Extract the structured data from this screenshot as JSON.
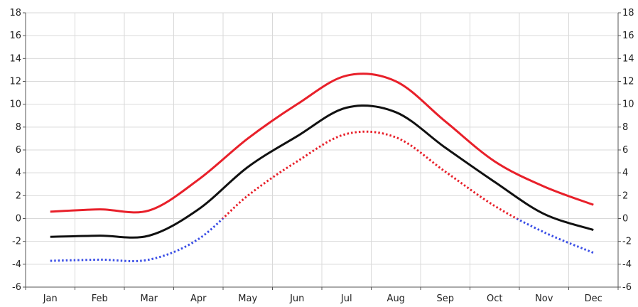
{
  "chart_data": {
    "type": "line",
    "title": "",
    "xlabel": "",
    "ylabel": "",
    "categories": [
      "Jan",
      "Feb",
      "Mar",
      "Apr",
      "May",
      "Jun",
      "Jul",
      "Aug",
      "Sep",
      "Oct",
      "Nov",
      "Dec"
    ],
    "ylim": [
      -6,
      18
    ],
    "yticks": [
      -6,
      -4,
      -2,
      0,
      2,
      4,
      6,
      8,
      10,
      12,
      14,
      16,
      18
    ],
    "y_axis_left_visible": true,
    "y_axis_right_visible": true,
    "grid": true,
    "legend": "none",
    "series": [
      {
        "color": "#e8202a",
        "style": "solid",
        "values": [
          0.6,
          0.8,
          0.7,
          3.4,
          7.0,
          10.0,
          12.5,
          12.0,
          8.5,
          5.0,
          2.8,
          1.2
        ]
      },
      {
        "color": "#111111",
        "style": "solid",
        "values": [
          -1.6,
          -1.5,
          -1.5,
          0.8,
          4.5,
          7.2,
          9.7,
          9.3,
          6.2,
          3.2,
          0.4,
          -1.0
        ]
      },
      {
        "style": "dotted",
        "color_above_zero": "#e8202a",
        "color_below_zero": "#3a4ee6",
        "values": [
          -3.7,
          -3.6,
          -3.6,
          -1.8,
          2.0,
          5.0,
          7.4,
          7.1,
          4.1,
          1.1,
          -1.2,
          -3.0
        ]
      }
    ]
  }
}
